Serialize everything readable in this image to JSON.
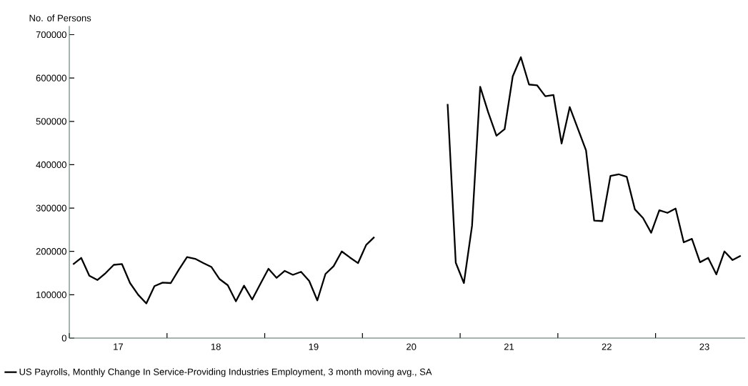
{
  "chart_data": {
    "type": "line",
    "ylabel": "No. of Persons",
    "x": [
      "2017-01-15",
      "2017-02-15",
      "2017-03-15",
      "2017-04-15",
      "2017-05-15",
      "2017-06-15",
      "2017-07-15",
      "2017-08-15",
      "2017-09-15",
      "2017-10-15",
      "2017-11-15",
      "2017-12-15",
      "2018-01-15",
      "2018-02-15",
      "2018-03-15",
      "2018-04-15",
      "2018-05-15",
      "2018-06-15",
      "2018-07-15",
      "2018-08-15",
      "2018-09-15",
      "2018-10-15",
      "2018-11-15",
      "2018-12-15",
      "2019-01-15",
      "2019-02-15",
      "2019-03-15",
      "2019-04-15",
      "2019-05-15",
      "2019-06-15",
      "2019-07-15",
      "2019-08-15",
      "2019-09-15",
      "2019-10-15",
      "2019-11-15",
      "2019-12-15",
      "2020-01-15",
      "2020-02-15",
      "2020-03-15",
      "2020-04-15",
      "2020-05-15",
      "2020-06-15",
      "2020-07-15",
      "2020-08-15",
      "2020-09-15",
      "2020-10-15",
      "2020-11-15",
      "2020-12-15",
      "2021-01-15",
      "2021-02-15",
      "2021-03-15",
      "2021-04-15",
      "2021-05-15",
      "2021-06-15",
      "2021-07-15",
      "2021-08-15",
      "2021-09-15",
      "2021-10-15",
      "2021-11-15",
      "2021-12-15",
      "2022-01-15",
      "2022-02-15",
      "2022-03-15",
      "2022-04-15",
      "2022-05-15",
      "2022-06-15",
      "2022-07-15",
      "2022-08-15",
      "2022-09-15",
      "2022-10-15",
      "2022-11-15",
      "2022-12-15",
      "2023-01-15",
      "2023-02-15",
      "2023-03-15",
      "2023-04-15",
      "2023-05-15",
      "2023-06-15",
      "2023-07-15",
      "2023-08-15",
      "2023-09-15",
      "2023-10-15",
      "2023-11-15"
    ],
    "series": [
      {
        "name": "US Payrolls, Monthly Change In Service-Providing Industries Employment, 3 month moving avg., SA",
        "color": "#000000",
        "values": [
          170000,
          185000,
          144000,
          134000,
          150000,
          169000,
          171000,
          127000,
          100000,
          80000,
          120000,
          128000,
          127000,
          158000,
          187000,
          183000,
          173000,
          164000,
          136000,
          122000,
          85000,
          121000,
          89000,
          125000,
          160000,
          139000,
          155000,
          146000,
          153000,
          132000,
          87000,
          148000,
          166000,
          200000,
          186000,
          173000,
          215000,
          233000,
          null,
          null,
          null,
          null,
          null,
          null,
          null,
          null,
          540000,
          174000,
          127000,
          259000,
          580000,
          520000,
          467000,
          482000,
          604000,
          648000,
          585000,
          583000,
          558000,
          561000,
          449000,
          533000,
          483000,
          433000,
          271000,
          270000,
          374000,
          378000,
          372000,
          297000,
          277000,
          243000,
          295000,
          289000,
          299000,
          221000,
          229000,
          175000,
          185000,
          147000,
          200000,
          180000,
          190000
        ]
      }
    ],
    "xlim": [
      "2017-01-01",
      "2023-12-01"
    ],
    "ylim": [
      0,
      720000
    ],
    "xticks": [
      {
        "value": "2017-01-01",
        "label": null
      },
      {
        "value": "2017-07-01",
        "label": "17"
      },
      {
        "value": "2018-01-01",
        "label": null
      },
      {
        "value": "2018-07-01",
        "label": "18"
      },
      {
        "value": "2019-01-01",
        "label": null
      },
      {
        "value": "2019-07-01",
        "label": "19"
      },
      {
        "value": "2020-01-01",
        "label": null
      },
      {
        "value": "2020-07-01",
        "label": "20"
      },
      {
        "value": "2021-01-01",
        "label": null
      },
      {
        "value": "2021-07-01",
        "label": "21"
      },
      {
        "value": "2022-01-01",
        "label": null
      },
      {
        "value": "2022-07-01",
        "label": "22"
      },
      {
        "value": "2023-01-01",
        "label": null
      },
      {
        "value": "2023-07-01",
        "label": "23"
      }
    ],
    "yticks": [
      0,
      100000,
      200000,
      300000,
      400000,
      500000,
      600000,
      700000
    ],
    "legend": "bottom"
  }
}
